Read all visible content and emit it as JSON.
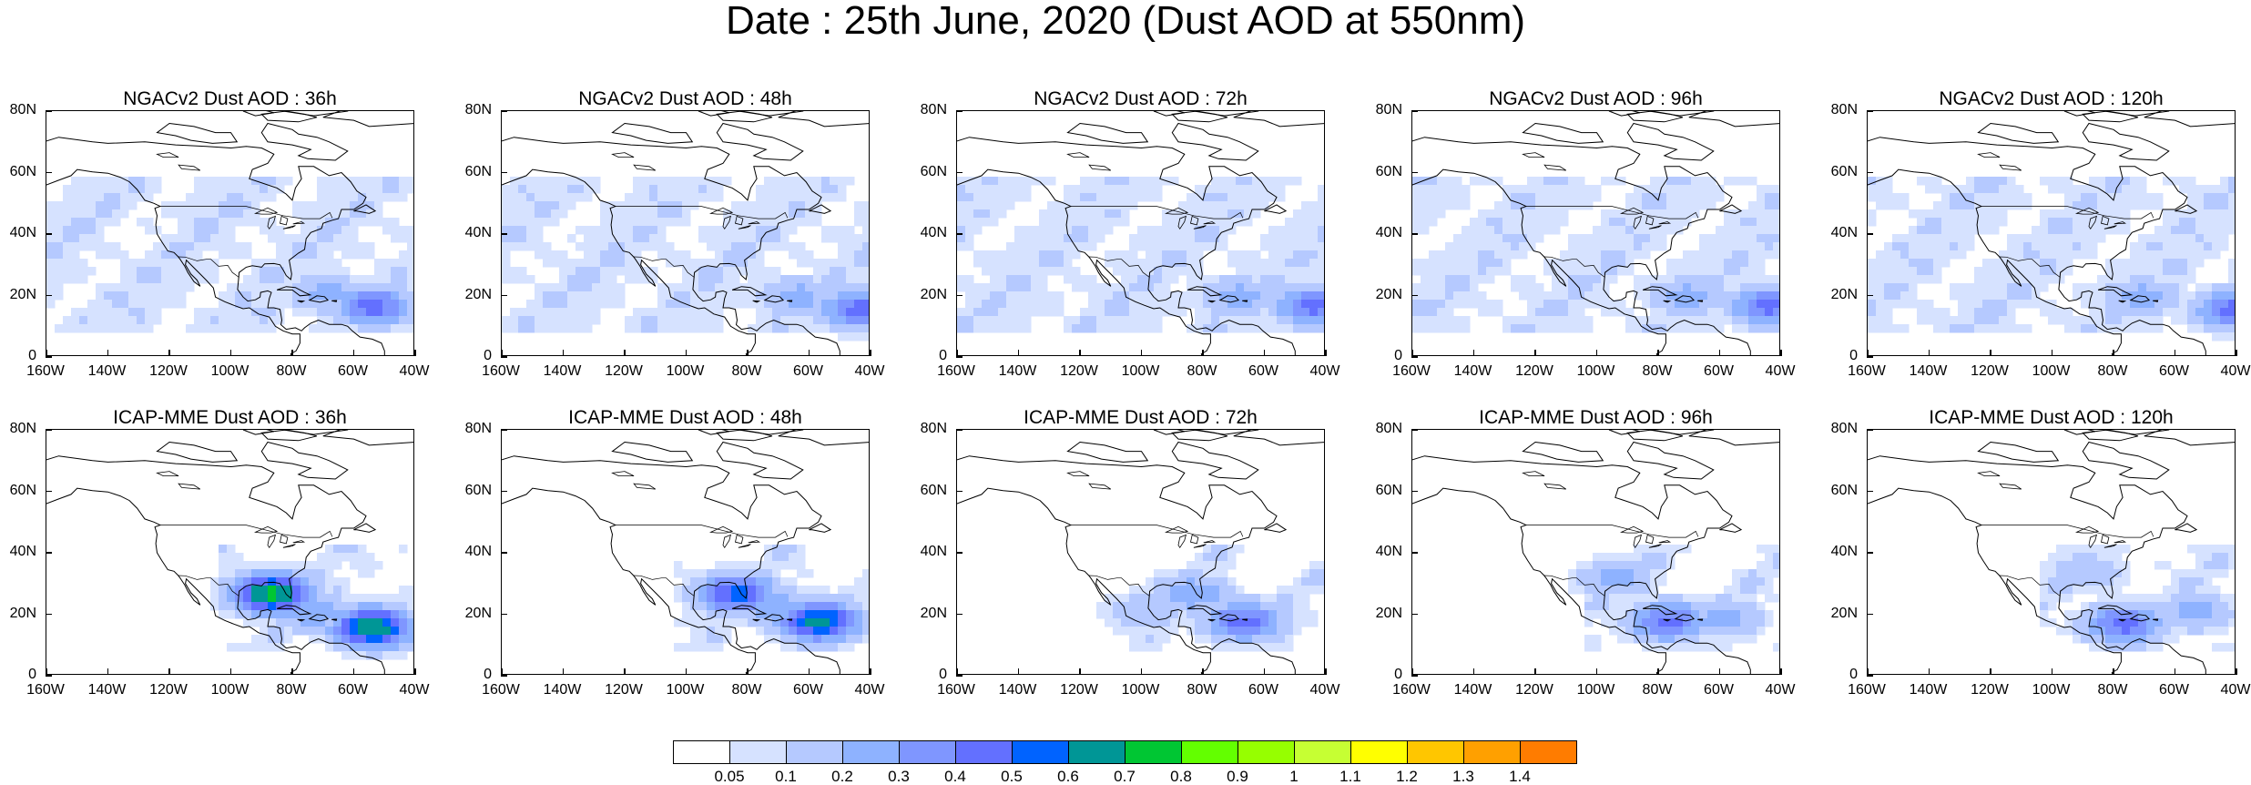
{
  "title": "Date : 25th June, 2020 (Dust AOD at 550nm)",
  "axes": {
    "y_labels": [
      "80N",
      "60N",
      "40N",
      "20N",
      "0"
    ],
    "x_labels": [
      "160W",
      "140W",
      "120W",
      "100W",
      "80W",
      "60W",
      "40W"
    ],
    "lat_range": [
      0,
      80
    ],
    "lon_range": [
      -160,
      -40
    ]
  },
  "panels": [
    {
      "title": "NGACv2 Dust AOD : 36h",
      "plumes": [
        {
          "lon": -55,
          "lat": 18,
          "level": 0.45
        },
        {
          "lon": -70,
          "lat": 22,
          "level": 0.25
        }
      ]
    },
    {
      "title": "NGACv2 Dust AOD : 48h",
      "plumes": [
        {
          "lon": -45,
          "lat": 17,
          "level": 0.45
        },
        {
          "lon": -65,
          "lat": 21,
          "level": 0.25
        }
      ]
    },
    {
      "title": "NGACv2 Dust AOD : 72h",
      "plumes": [
        {
          "lon": -45,
          "lat": 18,
          "level": 0.45
        },
        {
          "lon": -70,
          "lat": 21,
          "level": 0.25
        }
      ]
    },
    {
      "title": "NGACv2 Dust AOD : 96h",
      "plumes": [
        {
          "lon": -45,
          "lat": 18,
          "level": 0.45
        },
        {
          "lon": -72,
          "lat": 21,
          "level": 0.25
        }
      ]
    },
    {
      "title": "NGACv2 Dust AOD : 120h",
      "plumes": [
        {
          "lon": -42,
          "lat": 17,
          "level": 0.45
        },
        {
          "lon": -72,
          "lat": 21,
          "level": 0.25
        }
      ]
    },
    {
      "title": "ICAP-MME Dust AOD : 36h",
      "plumes": [
        {
          "lon": -88,
          "lat": 28,
          "level": 0.75
        },
        {
          "lon": -55,
          "lat": 17,
          "level": 0.7
        },
        {
          "lon": -75,
          "lat": 22,
          "level": 0.3
        }
      ]
    },
    {
      "title": "ICAP-MME Dust AOD : 48h",
      "plumes": [
        {
          "lon": -85,
          "lat": 28,
          "level": 0.55
        },
        {
          "lon": -58,
          "lat": 19,
          "level": 0.65
        },
        {
          "lon": -75,
          "lat": 25,
          "level": 0.3
        }
      ]
    },
    {
      "title": "ICAP-MME Dust AOD : 72h",
      "plumes": [
        {
          "lon": -68,
          "lat": 19,
          "level": 0.45
        },
        {
          "lon": -85,
          "lat": 28,
          "level": 0.3
        },
        {
          "lon": -100,
          "lat": 22,
          "level": 0.2
        }
      ]
    },
    {
      "title": "ICAP-MME Dust AOD : 96h",
      "plumes": [
        {
          "lon": -78,
          "lat": 19,
          "level": 0.45
        },
        {
          "lon": -95,
          "lat": 33,
          "level": 0.25
        },
        {
          "lon": -60,
          "lat": 20,
          "level": 0.25
        }
      ]
    },
    {
      "title": "ICAP-MME Dust AOD : 120h",
      "plumes": [
        {
          "lon": -78,
          "lat": 18,
          "level": 0.45
        },
        {
          "lon": -90,
          "lat": 35,
          "level": 0.2
        },
        {
          "lon": -55,
          "lat": 22,
          "level": 0.25
        }
      ]
    }
  ],
  "colorbar": {
    "labels": [
      "0.05",
      "0.1",
      "0.2",
      "0.3",
      "0.4",
      "0.5",
      "0.6",
      "0.7",
      "0.8",
      "0.9",
      "1",
      "1.1",
      "1.2",
      "1.3",
      "1.4"
    ],
    "colors": [
      "#ffffff",
      "#d6e2ff",
      "#b5c9ff",
      "#8eb2ff",
      "#7f96ff",
      "#6370ff",
      "#0063ff",
      "#009696",
      "#00c633",
      "#63ff00",
      "#96ff00",
      "#c6ff33",
      "#ffff00",
      "#ffc600",
      "#ffa000",
      "#ff7c00",
      "#ff1900"
    ]
  }
}
